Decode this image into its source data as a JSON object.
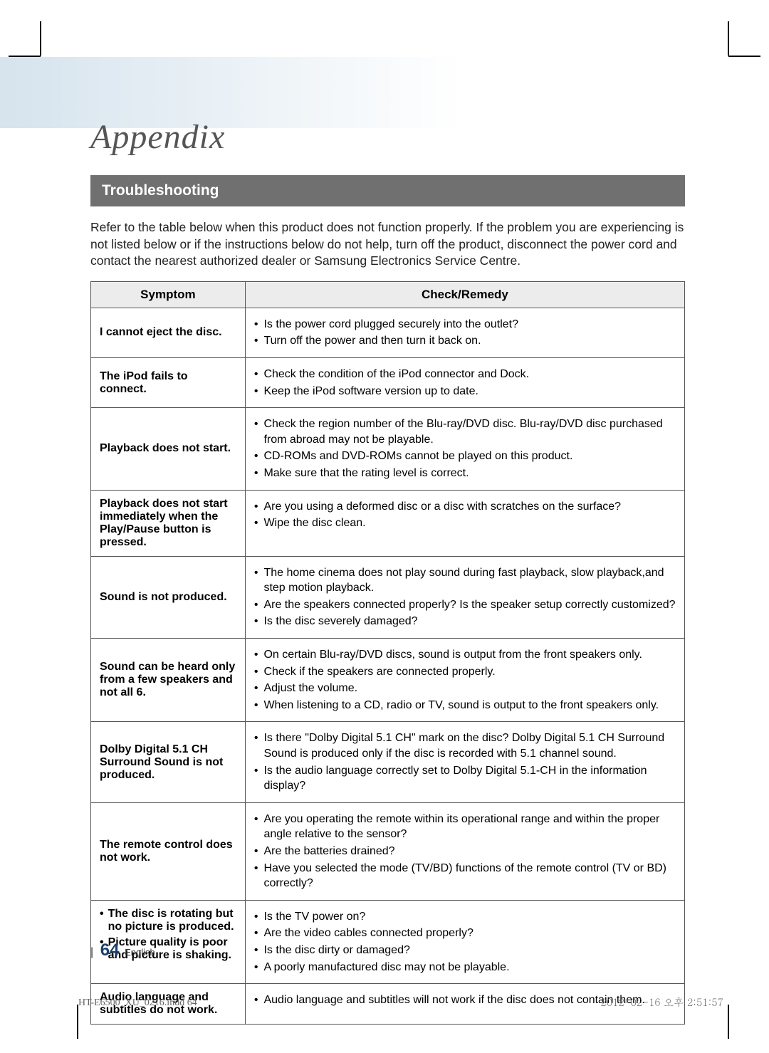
{
  "page_title": "Appendix",
  "section_heading": "Troubleshooting",
  "intro_text": "Refer to the table below when this product does not function properly. If the problem you are experiencing is not listed below or if the instructions below do not help, turn off the product, disconnect the power cord and contact the nearest authorized dealer or Samsung Electronics Service Centre.",
  "table": {
    "headers": {
      "symptom": "Symptom",
      "remedy": "Check/Remedy"
    },
    "rows": [
      {
        "symptom": "I cannot eject the disc.",
        "remedies": [
          "Is the power cord plugged securely into the outlet?",
          "Turn off the power and then turn it back on."
        ]
      },
      {
        "symptom": "The iPod fails to connect.",
        "remedies": [
          "Check the condition of the iPod connector and Dock.",
          "Keep the iPod software version up to date."
        ]
      },
      {
        "symptom": "Playback does not start.",
        "remedies": [
          "Check the region number of the Blu-ray/DVD disc. Blu-ray/DVD disc purchased from abroad may not be playable.",
          "CD-ROMs and DVD-ROMs cannot be played on this product.",
          "Make sure that the rating level is correct."
        ]
      },
      {
        "symptom": "Playback does not start immediately when the Play/Pause button is pressed.",
        "remedies": [
          "Are you using a deformed disc or a disc with scratches on the surface?",
          "Wipe the disc clean."
        ]
      },
      {
        "symptom": "Sound is not produced.",
        "remedies": [
          "The home cinema does not play sound during fast playback, slow playback,and step motion playback.",
          "Are the speakers connected properly? Is the speaker setup correctly customized?",
          "Is the disc severely damaged?"
        ]
      },
      {
        "symptom": "Sound can be heard only from a few speakers and not all 6.",
        "remedies": [
          "On certain Blu-ray/DVD discs, sound is output from the front speakers only.",
          "Check if the speakers are connected properly.",
          "Adjust the volume.",
          "When listening to a CD, radio or TV, sound is output to the front speakers only."
        ]
      },
      {
        "symptom": "Dolby Digital 5.1 CH Surround Sound is not produced.",
        "remedies": [
          "Is there \"Dolby Digital 5.1 CH\" mark on the disc? Dolby Digital 5.1 CH Surround Sound is produced only if the disc is recorded with 5.1 channel sound.",
          "Is the audio language correctly set to Dolby Digital 5.1-CH in the information display?"
        ]
      },
      {
        "symptom": "The remote control does not work.",
        "remedies": [
          "Are you operating the remote within its operational range and within the proper angle relative to the sensor?",
          "Are the batteries drained?",
          "Have you selected the mode (TV/BD) functions of the remote control (TV or BD) correctly?"
        ]
      },
      {
        "symptom_bullets": [
          "The disc is rotating but no picture is produced.",
          "Picture quality is poor and picture is shaking."
        ],
        "remedies": [
          "Is the TV power on?",
          "Are the video cables connected properly?",
          "Is the disc dirty or damaged?",
          "A poorly manufactured disc may not be playable."
        ]
      },
      {
        "symptom": "Audio language and subtitles do not work.",
        "remedies": [
          "Audio language and subtitles will not work if the disc does not contain them."
        ]
      }
    ]
  },
  "footer": {
    "page_number": "64",
    "language": "English",
    "print_left": "HT-E6500_XU_0216.indd   64",
    "print_right": "2012-02-16   오후 2:51:57"
  },
  "colors": {
    "heading_bg": "#707070",
    "heading_text": "#ffffff",
    "table_header_bg": "#ececec",
    "border": "#555555",
    "page_number": "#1a3f6b"
  }
}
